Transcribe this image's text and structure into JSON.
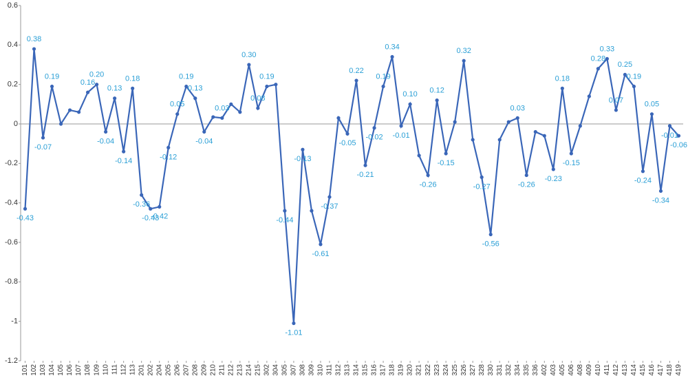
{
  "chart_data": {
    "type": "line",
    "categories": [
      "101",
      "102",
      "103",
      "104",
      "105",
      "106",
      "107",
      "108",
      "109",
      "110",
      "111",
      "112",
      "113",
      "201",
      "202",
      "204",
      "205",
      "206",
      "207",
      "208",
      "209",
      "210",
      "211",
      "212",
      "213",
      "214",
      "215",
      "302",
      "304",
      "305",
      "307",
      "308",
      "309",
      "310",
      "311",
      "312",
      "313",
      "314",
      "315",
      "316",
      "317",
      "318",
      "319",
      "320",
      "321",
      "322",
      "323",
      "324",
      "325",
      "326",
      "327",
      "328",
      "330",
      "331",
      "332",
      "334",
      "335",
      "336",
      "402",
      "403",
      "405",
      "406",
      "408",
      "409",
      "410",
      "411",
      "412",
      "413",
      "414",
      "415",
      "416",
      "417",
      "418",
      "419"
    ],
    "series": [
      {
        "color": "#3a66b8",
        "values": [
          -0.43,
          0.38,
          -0.07,
          0.19,
          0.0,
          0.07,
          0.06,
          0.16,
          0.2,
          -0.04,
          0.13,
          -0.14,
          0.18,
          -0.36,
          -0.43,
          -0.42,
          -0.12,
          0.05,
          0.19,
          0.13,
          -0.04,
          0.035,
          0.03,
          0.1,
          0.06,
          0.3,
          0.08,
          0.19,
          0.2,
          -0.44,
          -1.01,
          -0.13,
          -0.44,
          -0.61,
          -0.37,
          0.03,
          -0.05,
          0.22,
          -0.21,
          -0.02,
          0.19,
          0.34,
          -0.01,
          0.1,
          -0.16,
          -0.26,
          0.12,
          -0.15,
          0.01,
          0.32,
          -0.08,
          -0.27,
          -0.56,
          -0.08,
          0.01,
          0.03,
          -0.26,
          -0.04,
          -0.06,
          -0.23,
          0.18,
          -0.15,
          -0.01,
          0.14,
          0.28,
          0.33,
          0.07,
          0.25,
          0.19,
          -0.24,
          0.05,
          -0.34,
          -0.01,
          -0.06
        ],
        "value_labels": [
          "-0.43",
          "0.38",
          "-0.07",
          "0.19",
          null,
          null,
          null,
          "0.16",
          "0.20",
          "-0.04",
          "0.13",
          "-0.14",
          "0.18",
          "-0.36",
          "-0.43",
          "-0.42",
          "-0.12",
          "0.05",
          "0.19",
          "0.13",
          "-0.04",
          null,
          "0.03",
          null,
          null,
          "0.30",
          "0.08",
          "0.19",
          null,
          "-0.44",
          "-1.01",
          "-0.13",
          null,
          "-0.61",
          "-0.37",
          null,
          "-0.05",
          "0.22",
          "-0.21",
          "-0.02",
          "0.19",
          "0.34",
          "-0.01",
          "0.10",
          null,
          "-0.26",
          "0.12",
          "-0.15",
          null,
          "0.32",
          null,
          "-0.27",
          "-0.56",
          null,
          null,
          "0.03",
          "-0.26",
          null,
          null,
          "-0.23",
          "0.18",
          "-0.15",
          null,
          null,
          "0.28",
          "0.33",
          "0.07",
          "0.25",
          "0.19",
          "-0.24",
          "0.05",
          "-0.34",
          "-0.01",
          "-0.06"
        ]
      }
    ],
    "label_color": "#2a9fd6",
    "ylim": [
      -1.2,
      0.6
    ],
    "yticks": [
      0.6,
      0.4,
      0.2,
      0,
      -0.2,
      -0.4,
      -0.6,
      -0.8,
      -1,
      -1.2
    ]
  }
}
